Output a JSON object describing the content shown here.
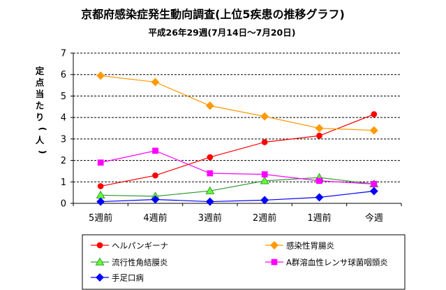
{
  "chart_data": {
    "type": "line",
    "title": "京都府感染症発生動向調査(上位5疾患の推移グラフ)",
    "subtitle": "平成26年29週(7月14日～7月20日)",
    "ylabel": "定点当たり(人)",
    "xlabel": "",
    "categories": [
      "5週前",
      "4週前",
      "3週前",
      "2週前",
      "1週前",
      "今週"
    ],
    "ylim": [
      0,
      7
    ],
    "yticks": [
      0,
      1,
      2,
      3,
      4,
      5,
      6,
      7
    ],
    "grid": true,
    "legend_position": "bottom",
    "series": [
      {
        "name": "ヘルパンギーナ",
        "values": [
          0.8,
          1.3,
          2.15,
          2.85,
          3.15,
          4.15
        ],
        "color": "#ff0000",
        "marker": "circle",
        "marker_fill": "#ff0000"
      },
      {
        "name": "感染性胃腸炎",
        "values": [
          5.95,
          5.65,
          4.55,
          4.05,
          3.5,
          3.4
        ],
        "color": "#ff9900",
        "marker": "diamond",
        "marker_fill": "#ff9900"
      },
      {
        "name": "流行性角結膜炎",
        "values": [
          0.38,
          0.33,
          0.58,
          1.05,
          1.2,
          0.9
        ],
        "color": "#339933",
        "marker": "triangle",
        "marker_fill": "#66ff33"
      },
      {
        "name": "A群溶血性レンサ球菌咽頭炎",
        "values": [
          1.9,
          2.45,
          1.4,
          1.35,
          1.05,
          0.9
        ],
        "color": "#ff00ff",
        "marker": "square",
        "marker_fill": "#ff00ff"
      },
      {
        "name": "手足口病",
        "values": [
          0.08,
          0.18,
          0.08,
          0.15,
          0.28,
          0.57
        ],
        "color": "#0000ff",
        "marker": "diamond",
        "marker_fill": "#0000ff"
      }
    ]
  }
}
